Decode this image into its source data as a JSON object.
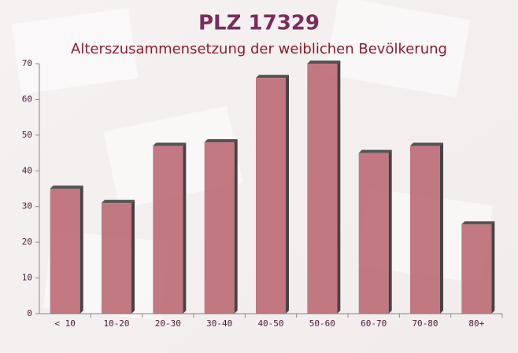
{
  "chart_data": {
    "type": "bar",
    "title": "PLZ 17329",
    "subtitle": "Alterszusammensetzung der weiblichen Bevölkerung",
    "categories": [
      "< 10",
      "10-20",
      "20-30",
      "30-40",
      "40-50",
      "50-60",
      "60-70",
      "70-80",
      "80+"
    ],
    "values": [
      35,
      31,
      47,
      48,
      66,
      70,
      45,
      47,
      25
    ],
    "color": "#b8636c",
    "ylim": [
      0,
      70
    ],
    "yticks": [
      0,
      10,
      20,
      30,
      40,
      50,
      60,
      70
    ]
  }
}
